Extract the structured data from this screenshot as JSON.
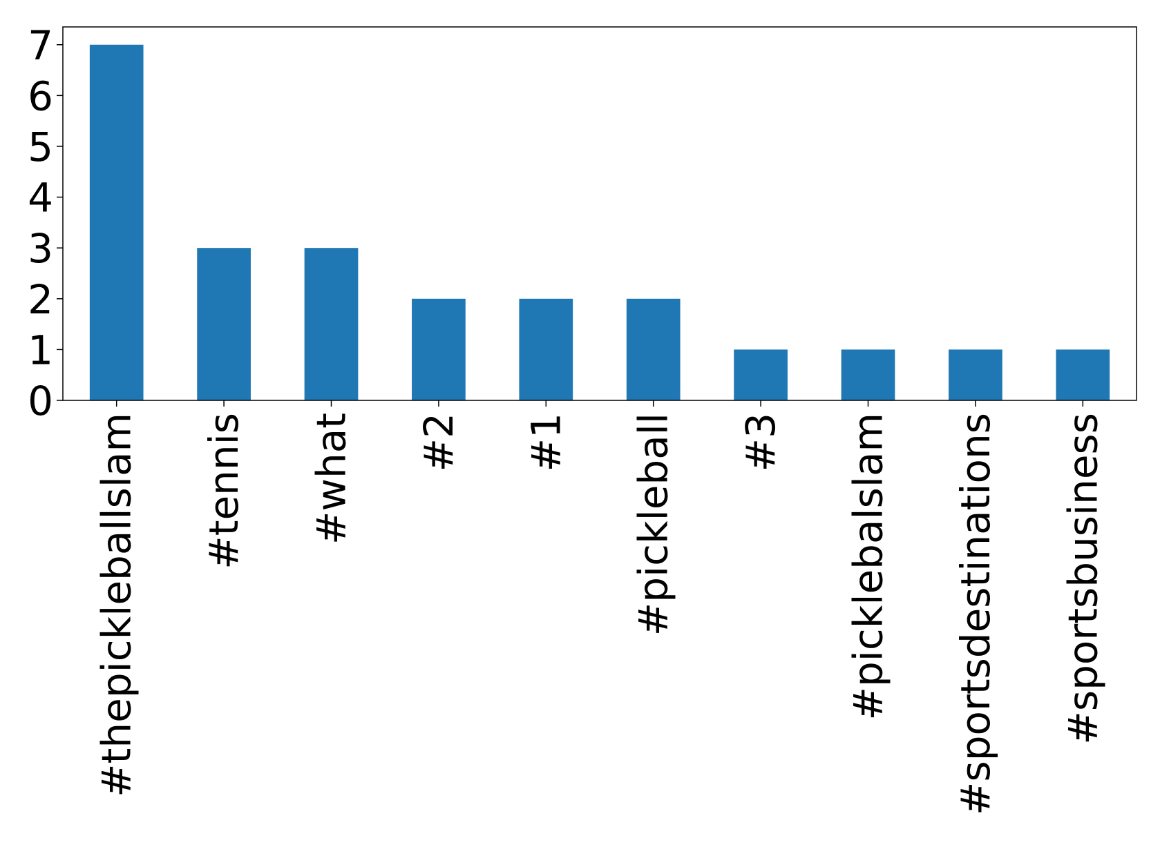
{
  "chart_data": {
    "type": "bar",
    "title": "",
    "xlabel": "",
    "ylabel": "",
    "categories": [
      "#thepickleballslam",
      "#tennis",
      "#what",
      "#2",
      "#1",
      "#pickleball",
      "#3",
      "#picklebalslam",
      "#sportsdestinations",
      "#sportsbusiness"
    ],
    "values": [
      7,
      3,
      3,
      2,
      2,
      2,
      1,
      1,
      1,
      1
    ],
    "ylim": [
      0,
      7.35
    ],
    "yticks": [
      0,
      1,
      2,
      3,
      4,
      5,
      6,
      7
    ],
    "grid": false,
    "legend": "none",
    "bar_color": "#1f77b4"
  }
}
